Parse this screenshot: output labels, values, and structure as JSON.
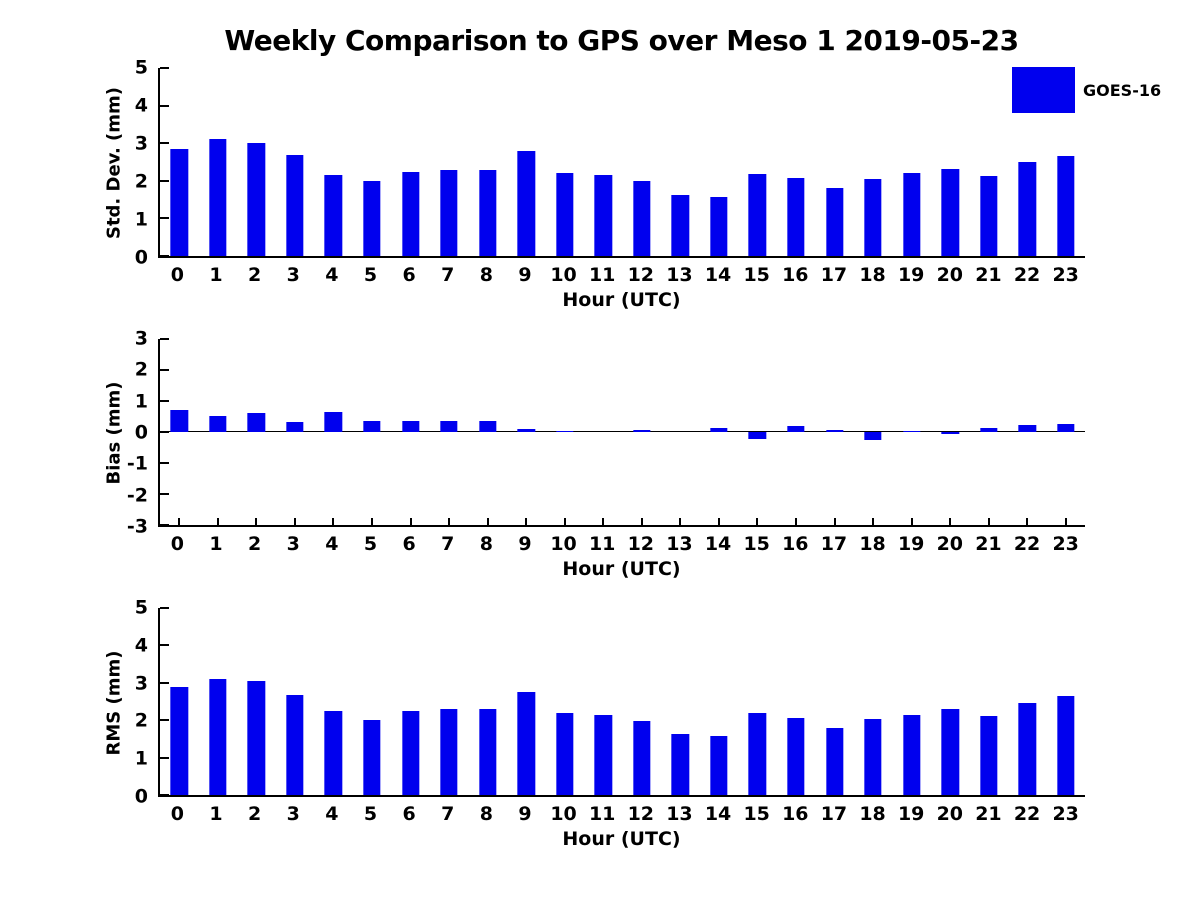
{
  "title": "Weekly Comparison to GPS over Meso 1 2019-05-23",
  "legend": {
    "label": "GOES-16",
    "color": "#0000ee",
    "position": "upper-right"
  },
  "chart_data": [
    {
      "type": "bar",
      "title": "Weekly Comparison to GPS over Meso 1 2019-05-23",
      "series_name": "GOES-16",
      "xlabel": "Hour (UTC)",
      "ylabel": "Std. Dev. (mm)",
      "ylim": [
        0,
        5
      ],
      "yticks": [
        0,
        1,
        2,
        3,
        4,
        5
      ],
      "grid": false,
      "categories": [
        "0",
        "1",
        "2",
        "3",
        "4",
        "5",
        "6",
        "7",
        "8",
        "9",
        "10",
        "11",
        "12",
        "13",
        "14",
        "15",
        "16",
        "17",
        "18",
        "19",
        "20",
        "21",
        "22",
        "23"
      ],
      "values": [
        2.84,
        3.1,
        3.0,
        2.68,
        2.15,
        2.0,
        2.24,
        2.29,
        2.29,
        2.79,
        2.21,
        2.15,
        2.0,
        1.63,
        1.58,
        2.18,
        2.07,
        1.82,
        2.04,
        2.2,
        2.32,
        2.13,
        2.49,
        2.66
      ]
    },
    {
      "type": "bar",
      "title": "",
      "series_name": "GOES-16",
      "xlabel": "Hour (UTC)",
      "ylabel": "Bias (mm)",
      "ylim": [
        -3,
        3
      ],
      "yticks": [
        -3,
        -2,
        -1,
        0,
        1,
        2,
        3
      ],
      "grid": false,
      "categories": [
        "0",
        "1",
        "2",
        "3",
        "4",
        "5",
        "6",
        "7",
        "8",
        "9",
        "10",
        "11",
        "12",
        "13",
        "14",
        "15",
        "16",
        "17",
        "18",
        "19",
        "20",
        "21",
        "22",
        "23"
      ],
      "values": [
        0.7,
        0.53,
        0.62,
        0.31,
        0.64,
        0.35,
        0.37,
        0.37,
        0.37,
        0.11,
        0.04,
        0.0,
        0.08,
        0.0,
        0.12,
        -0.22,
        0.19,
        0.05,
        -0.27,
        0.04,
        -0.05,
        0.14,
        0.23,
        0.25
      ]
    },
    {
      "type": "bar",
      "title": "",
      "series_name": "GOES-16",
      "xlabel": "Hour (UTC)",
      "ylabel": "RMS (mm)",
      "ylim": [
        0,
        5
      ],
      "yticks": [
        0,
        1,
        2,
        3,
        4,
        5
      ],
      "grid": false,
      "categories": [
        "0",
        "1",
        "2",
        "3",
        "4",
        "5",
        "6",
        "7",
        "8",
        "9",
        "10",
        "11",
        "12",
        "13",
        "14",
        "15",
        "16",
        "17",
        "18",
        "19",
        "20",
        "21",
        "22",
        "23"
      ],
      "values": [
        2.9,
        3.1,
        3.05,
        2.68,
        2.24,
        2.01,
        2.25,
        2.3,
        2.3,
        2.76,
        2.2,
        2.15,
        1.99,
        1.62,
        1.57,
        2.19,
        2.07,
        1.79,
        2.04,
        2.15,
        2.31,
        2.11,
        2.47,
        2.64
      ]
    }
  ]
}
